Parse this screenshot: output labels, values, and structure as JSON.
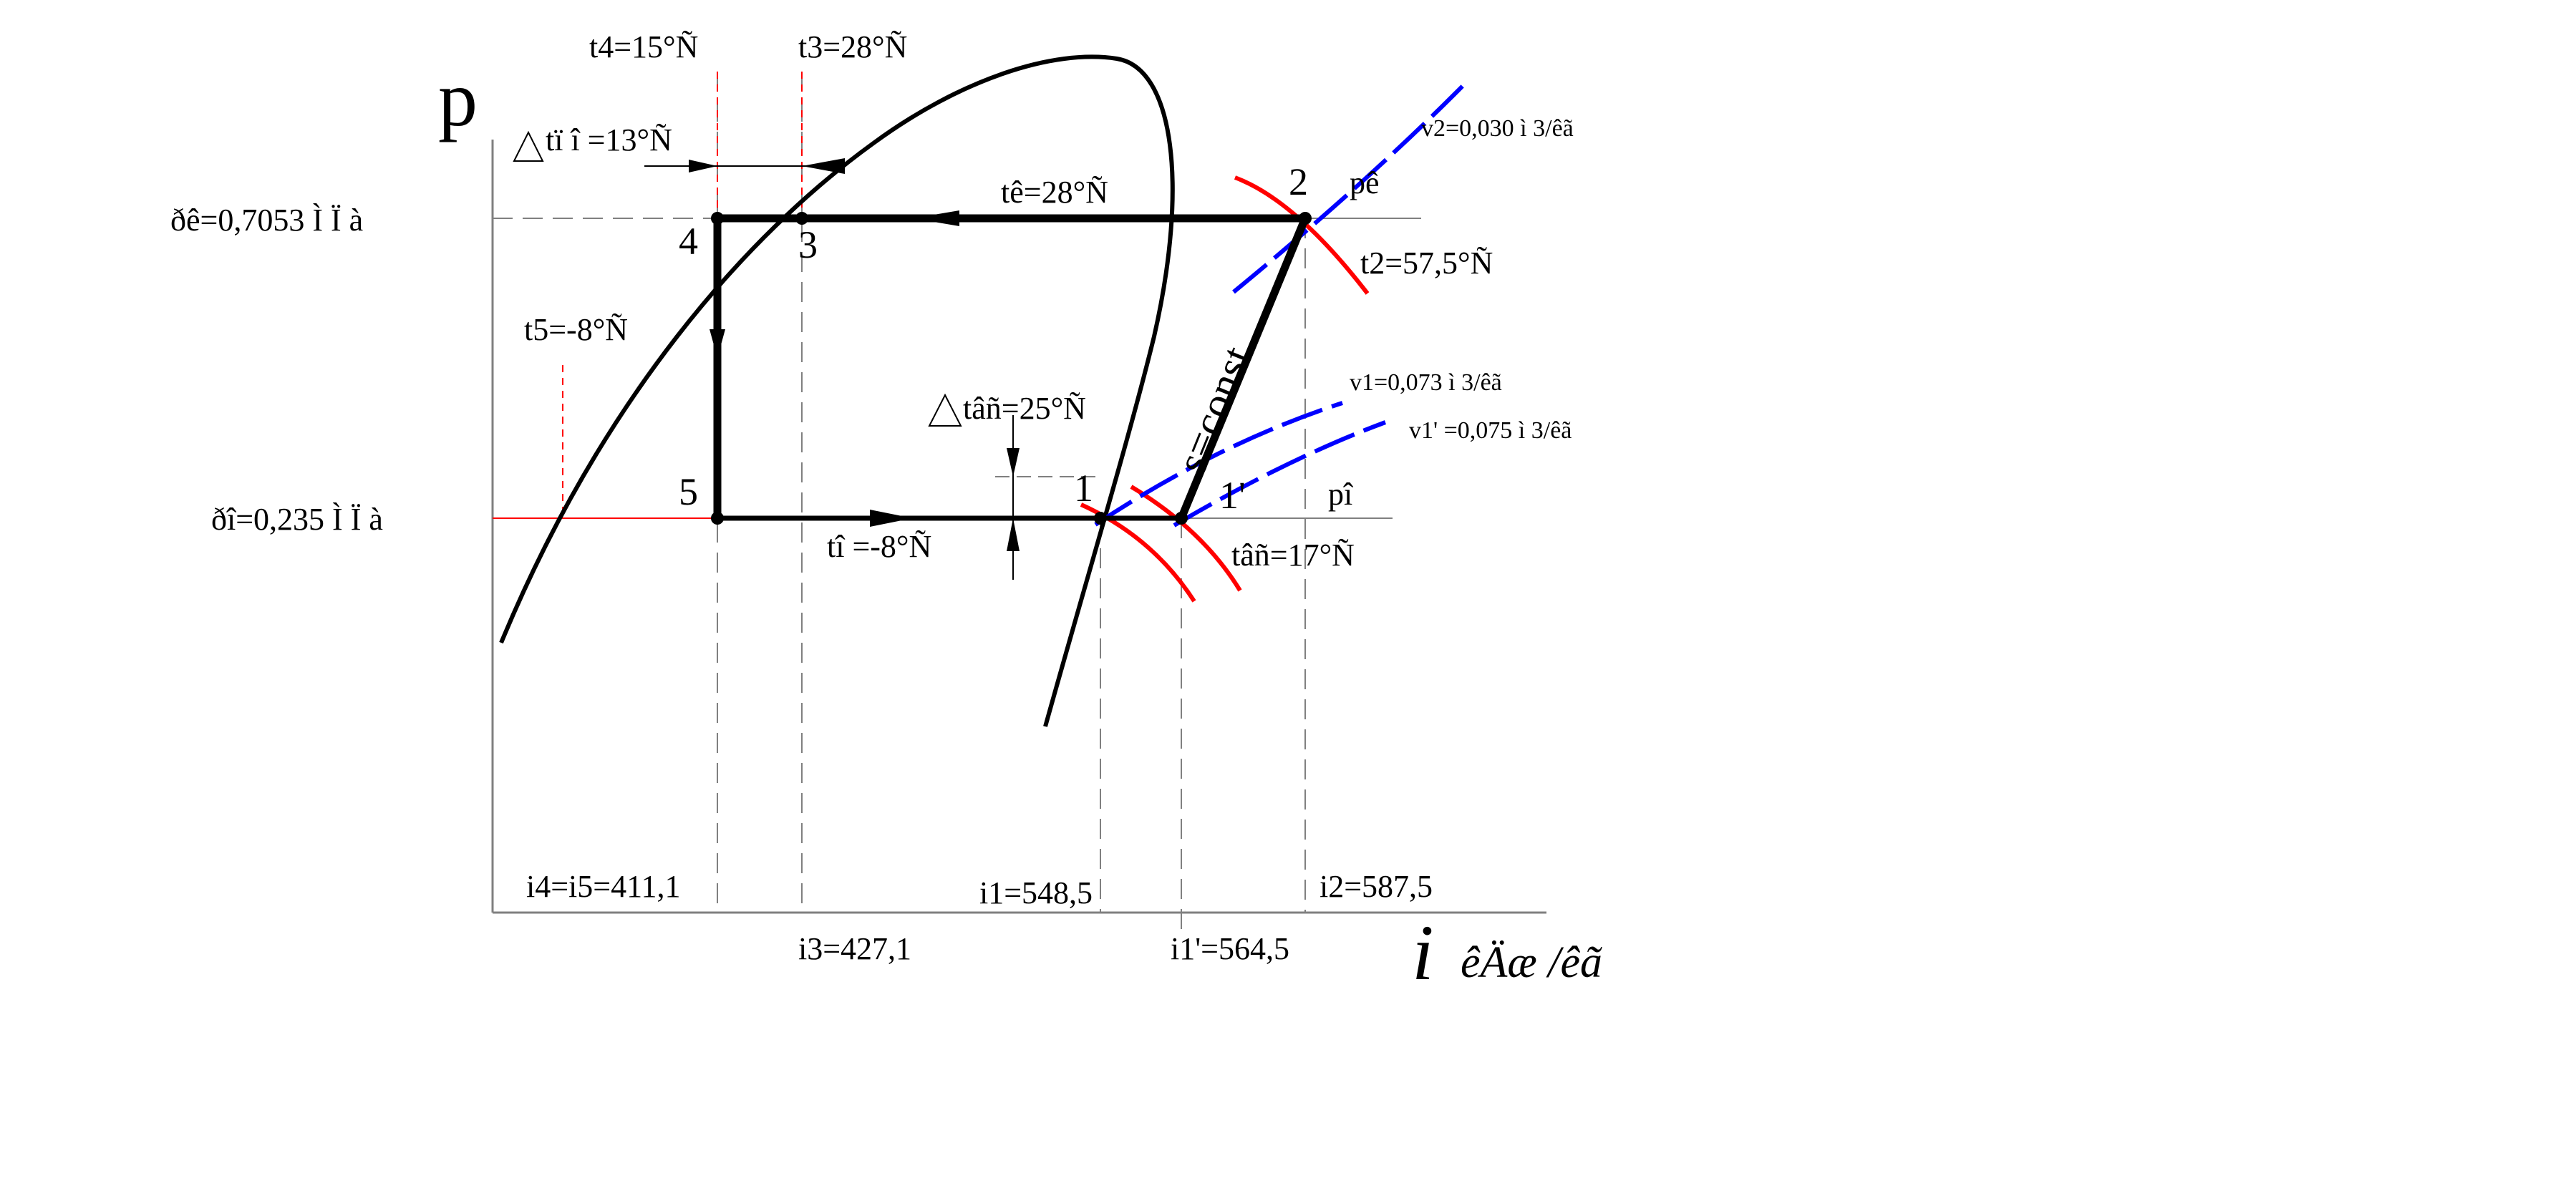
{
  "axes": {
    "y_label": "p",
    "x_label": "i",
    "x_unit": "êÄæ /êã"
  },
  "points": [
    {
      "id": "1",
      "label": "1"
    },
    {
      "id": "1p",
      "label": "1'"
    },
    {
      "id": "2",
      "label": "2"
    },
    {
      "id": "3",
      "label": "3"
    },
    {
      "id": "4",
      "label": "4"
    },
    {
      "id": "5",
      "label": "5"
    }
  ],
  "pressures": {
    "pk": "ðê=0,7053 Ì Ï à",
    "po": "ðî=0,235 Ì Ï à",
    "pk_iso": "pê",
    "po_iso": "pî"
  },
  "temperatures": {
    "t4": "t4=15°Ñ",
    "t3": "t3=28°Ñ",
    "dt_sub": "tï î =13°Ñ",
    "tk": "tê=28°Ñ",
    "t2": "t2=57,5°Ñ",
    "t5": "t5=-8°Ñ",
    "dt_sup": "tâñ=25°Ñ",
    "to": "tî =-8°Ñ",
    "t_sup": "tâñ=17°Ñ"
  },
  "volumes": {
    "v2": "v2=0,030 ì 3/êã",
    "v1": "v1=0,073 ì 3/êã",
    "v1p": "v1' =0,075 ì 3/êã"
  },
  "entropy_line": "s=const",
  "enthalpies": {
    "i45": "i4=i5=411,1",
    "i3": "i3=427,1",
    "i1": "i1=548,5",
    "i1p": "i1'=564,5",
    "i2": "i2=587,5"
  },
  "colors": {
    "cycle": "#000000",
    "isotherm": "#ff0000",
    "isochore": "#0000ff",
    "guide": "#808080",
    "guide_red": "#ff0000"
  }
}
